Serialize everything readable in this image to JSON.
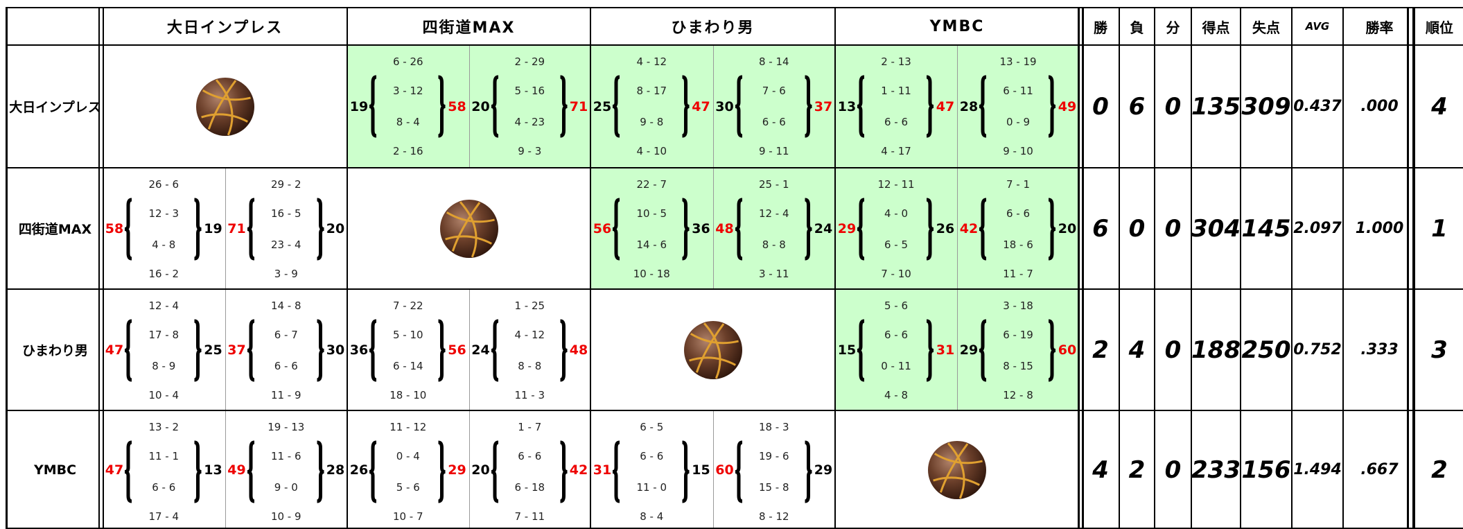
{
  "header": {
    "teams": [
      "大日インプレス",
      "四街道MAX",
      "ひまわり男",
      "YMBC"
    ],
    "stats": [
      "勝",
      "負",
      "分",
      "得点",
      "失点",
      "AVG",
      "勝率",
      "順位"
    ]
  },
  "rows": [
    {
      "results": [
        null,
        [
          {
            "left": 19,
            "right": 58,
            "quarters": [
              "6 - 26",
              "3 - 12",
              "8 - 4",
              "2 - 16"
            ]
          },
          {
            "left": 20,
            "right": 71,
            "quarters": [
              "2 - 29",
              "5 - 16",
              "4 - 23",
              "9 - 3"
            ]
          }
        ],
        [
          {
            "left": 25,
            "right": 47,
            "quarters": [
              "4 - 12",
              "8 - 17",
              "9 - 8",
              "4 - 10"
            ]
          },
          {
            "left": 30,
            "right": 37,
            "quarters": [
              "8 - 14",
              "7 - 6",
              "6 - 6",
              "9 - 11"
            ]
          }
        ],
        [
          {
            "left": 13,
            "right": 47,
            "quarters": [
              "2 - 13",
              "1 - 11",
              "6 - 6",
              "4 - 17"
            ]
          },
          {
            "left": 28,
            "right": 49,
            "quarters": [
              "13 - 19",
              "6 - 11",
              "0 - 9",
              "9 - 10"
            ]
          }
        ]
      ],
      "stats": [
        0,
        6,
        0,
        135,
        309,
        "0.437",
        ".000",
        4
      ]
    },
    {
      "results": [
        [
          {
            "left": 58,
            "right": 19,
            "quarters": [
              "26 - 6",
              "12 - 3",
              "4 - 8",
              "16 - 2"
            ]
          },
          {
            "left": 71,
            "right": 20,
            "quarters": [
              "29 - 2",
              "16 - 5",
              "23 - 4",
              "3 - 9"
            ]
          }
        ],
        null,
        [
          {
            "left": 56,
            "right": 36,
            "quarters": [
              "22 - 7",
              "10 - 5",
              "14 - 6",
              "10 - 18"
            ]
          },
          {
            "left": 48,
            "right": 24,
            "quarters": [
              "25 - 1",
              "12 - 4",
              "8 - 8",
              "3 - 11"
            ]
          }
        ],
        [
          {
            "left": 29,
            "right": 26,
            "quarters": [
              "12 - 11",
              "4 - 0",
              "6 - 5",
              "7 - 10"
            ]
          },
          {
            "left": 42,
            "right": 20,
            "quarters": [
              "7 - 1",
              "6 - 6",
              "18 - 6",
              "11 - 7"
            ]
          }
        ]
      ],
      "stats": [
        6,
        0,
        0,
        304,
        145,
        "2.097",
        "1.000",
        1
      ]
    },
    {
      "results": [
        [
          {
            "left": 47,
            "right": 25,
            "quarters": [
              "12 - 4",
              "17 - 8",
              "8 - 9",
              "10 - 4"
            ]
          },
          {
            "left": 37,
            "right": 30,
            "quarters": [
              "14 - 8",
              "6 - 7",
              "6 - 6",
              "11 - 9"
            ]
          }
        ],
        [
          {
            "left": 36,
            "right": 56,
            "quarters": [
              "7 - 22",
              "5 - 10",
              "6 - 14",
              "18 - 10"
            ]
          },
          {
            "left": 24,
            "right": 48,
            "quarters": [
              "1 - 25",
              "4 - 12",
              "8 - 8",
              "11 - 3"
            ]
          }
        ],
        null,
        [
          {
            "left": 15,
            "right": 31,
            "quarters": [
              "5 - 6",
              "6 - 6",
              "0 - 11",
              "4 - 8"
            ]
          },
          {
            "left": 29,
            "right": 60,
            "quarters": [
              "3 - 18",
              "6 - 19",
              "8 - 15",
              "12 - 8"
            ]
          }
        ]
      ],
      "stats": [
        2,
        4,
        0,
        188,
        250,
        "0.752",
        ".333",
        3
      ]
    },
    {
      "results": [
        [
          {
            "left": 47,
            "right": 13,
            "quarters": [
              "13 - 2",
              "11 - 1",
              "6 - 6",
              "17 - 4"
            ]
          },
          {
            "left": 49,
            "right": 28,
            "quarters": [
              "19 - 13",
              "11 - 6",
              "9 - 0",
              "10 - 9"
            ]
          }
        ],
        [
          {
            "left": 26,
            "right": 29,
            "quarters": [
              "11 - 12",
              "0 - 4",
              "5 - 6",
              "10 - 7"
            ]
          },
          {
            "left": 20,
            "right": 42,
            "quarters": [
              "1 - 7",
              "6 - 6",
              "6 - 18",
              "7 - 11"
            ]
          }
        ],
        [
          {
            "left": 31,
            "right": 15,
            "quarters": [
              "6 - 5",
              "6 - 6",
              "11 - 0",
              "8 - 4"
            ]
          },
          {
            "left": 60,
            "right": 29,
            "quarters": [
              "18 - 3",
              "19 - 6",
              "15 - 8",
              "8 - 12"
            ]
          }
        ],
        null
      ],
      "stats": [
        4,
        2,
        0,
        233,
        156,
        "1.494",
        ".667",
        2
      ]
    }
  ]
}
